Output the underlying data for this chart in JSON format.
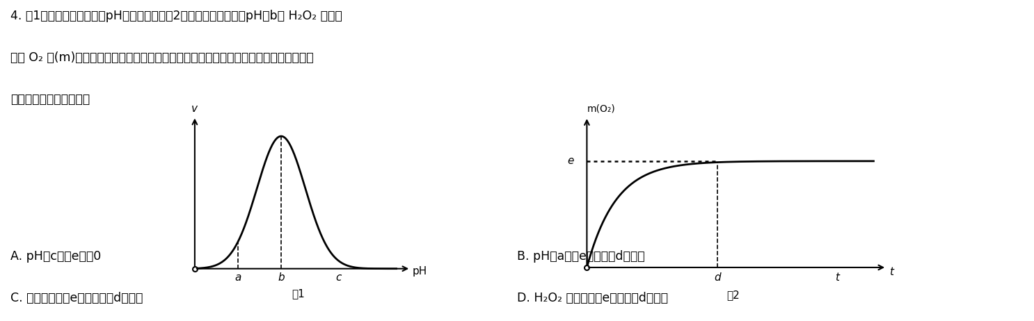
{
  "title_line1": "4. 图1是过氧化氢酶活性受pH影响的曲线。图2表示在最适温度下，pH＝b时 H₂O₂ 分解产",
  "title_line2": "生的 O₂ 量(m)随时间的变化曲线。若该酶促反应过程中改变某一初始条件，在做出以下改",
  "title_line3": "变时，有关描述错误的是",
  "fig1_xlabel": "pH",
  "fig1_ylabel": "v",
  "fig1_caption": "图1",
  "fig2_xlabel": "t",
  "fig2_ylabel": "m(O₂)",
  "fig2_caption": "图2",
  "fig1_a_label": "a",
  "fig1_b_label": "b",
  "fig1_c_label": "c",
  "fig2_e_label": "e",
  "fig2_d_label": "d",
  "option_A": "A. pH＝c时，e点为0",
  "option_B": "B. pH＝a时，e点不变，d点右移",
  "option_C": "C. 温度降低时，e点不移动，d点右移",
  "option_D": "D. H₂O₂ 量增加时，e点上移，d点右移",
  "bg_color": "#ffffff",
  "text_color": "#000000"
}
